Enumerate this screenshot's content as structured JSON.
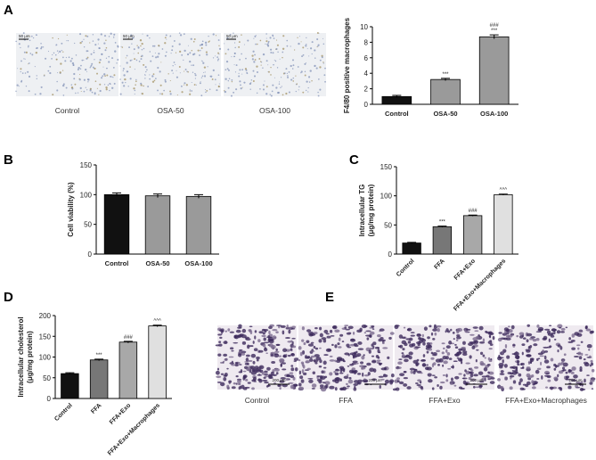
{
  "panels": [
    "A",
    "B",
    "C",
    "D",
    "E"
  ],
  "images_a": {
    "labels": [
      "Control",
      "OSA-50",
      "OSA-100"
    ],
    "scale_bars": [
      "50 μm",
      "50 μm",
      "50 μm"
    ]
  },
  "images_e": {
    "labels": [
      "Control",
      "FFA",
      "FFA+Exo",
      "FFA+Exo+Macrophages"
    ],
    "scale_bars": [
      "200 μm",
      "200 μm",
      "200 μm",
      "200 μm"
    ]
  },
  "chart_data": [
    {
      "type": "bar",
      "ylabel": [
        "F4/80 positive macrophages"
      ],
      "categories": [
        "Control",
        "OSA-50",
        "OSA-100"
      ],
      "values": [
        1.0,
        3.2,
        8.7
      ],
      "errors": [
        0.15,
        0.15,
        0.25
      ],
      "colors": [
        "#111111",
        "#9a9a9a",
        "#9a9a9a"
      ],
      "ylim": [
        0,
        10
      ],
      "yticks": [
        0,
        2,
        4,
        6,
        8,
        10
      ],
      "annotations": [
        {
          "index": 1,
          "lines": [
            "***"
          ]
        },
        {
          "index": 2,
          "lines": [
            "###",
            "***"
          ]
        }
      ]
    },
    {
      "type": "bar",
      "ylabel": [
        "Cell viability (%)"
      ],
      "categories": [
        "Control",
        "OSA-50",
        "OSA-100"
      ],
      "values": [
        100,
        98,
        97
      ],
      "errors": [
        3,
        3,
        3
      ],
      "colors": [
        "#111111",
        "#9a9a9a",
        "#9a9a9a"
      ],
      "ylim": [
        0,
        150
      ],
      "yticks": [
        0,
        50,
        100,
        150
      ]
    },
    {
      "type": "bar",
      "ylabel": [
        "Intracellular TG",
        "(μg/mg protein)"
      ],
      "categories": [
        "Control",
        "FFA",
        "FFA+Exo",
        "FFA+Exo+Macrophages"
      ],
      "values": [
        19,
        47,
        66,
        102
      ],
      "errors": [
        1,
        1,
        1,
        1
      ],
      "colors": [
        "#111111",
        "#777777",
        "#a8a8a8",
        "#e0e0e0"
      ],
      "ylim": [
        0,
        150
      ],
      "yticks": [
        0,
        50,
        100,
        150
      ],
      "annotations": [
        {
          "index": 1,
          "lines": [
            "***"
          ]
        },
        {
          "index": 2,
          "lines": [
            "###"
          ]
        },
        {
          "index": 3,
          "lines": [
            "^^^"
          ]
        }
      ]
    },
    {
      "type": "bar",
      "ylabel": [
        "Intracellular cholesterol",
        "(μg/mg protein)"
      ],
      "categories": [
        "Control",
        "FFA",
        "FFA+Exo",
        "FFA+Exo+Macrophages"
      ],
      "values": [
        60,
        93,
        136,
        175
      ],
      "errors": [
        2,
        2,
        2,
        2
      ],
      "colors": [
        "#111111",
        "#777777",
        "#a8a8a8",
        "#e0e0e0"
      ],
      "ylim": [
        0,
        200
      ],
      "yticks": [
        0,
        50,
        100,
        150,
        200
      ],
      "annotations": [
        {
          "index": 1,
          "lines": [
            "***"
          ]
        },
        {
          "index": 2,
          "lines": [
            "###"
          ]
        },
        {
          "index": 3,
          "lines": [
            "^^^"
          ]
        }
      ]
    }
  ]
}
